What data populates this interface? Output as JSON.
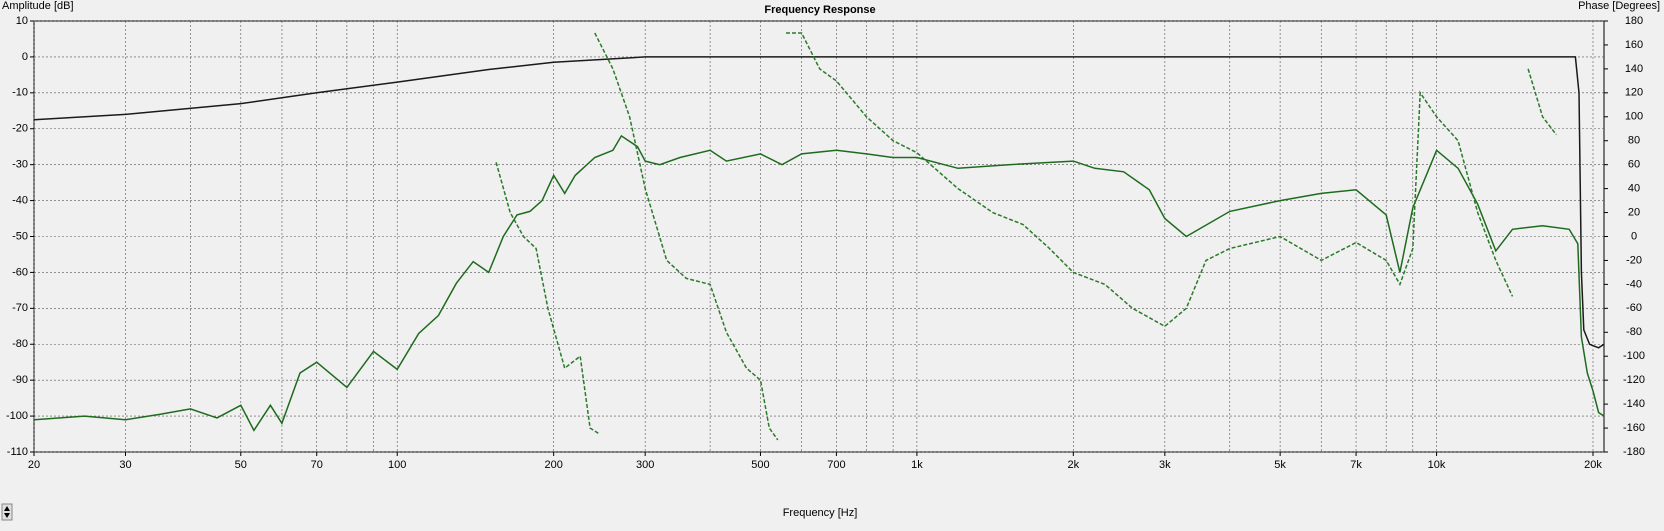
{
  "chart_data": {
    "type": "line",
    "title": "Frequency Response",
    "ylabel": "Amplitude [dB]",
    "y2label": "Phase [Degrees]",
    "xlabel": "Frequency [Hz]",
    "xscale": "log",
    "grid": true,
    "xlim": [
      20,
      21000
    ],
    "xticks": [
      20,
      30,
      50,
      70,
      100,
      200,
      300,
      500,
      700,
      {
        "value": 1000,
        "label": "1k"
      },
      {
        "value": 2000,
        "label": "2k"
      },
      {
        "value": 3000,
        "label": "3k"
      },
      {
        "value": 5000,
        "label": "5k"
      },
      {
        "value": 7000,
        "label": "7k"
      },
      {
        "value": 10000,
        "label": "10k"
      },
      {
        "value": 20000,
        "label": "20k"
      }
    ],
    "x_minor_grid": [
      40,
      60,
      80,
      90,
      400,
      600,
      800,
      900,
      4000,
      6000,
      8000,
      9000
    ],
    "ylim": [
      -110,
      10
    ],
    "yticks": [
      -110,
      -100,
      -90,
      -80,
      -70,
      -60,
      -50,
      -40,
      -30,
      -20,
      -10,
      0,
      10
    ],
    "y2lim": [
      -180,
      180
    ],
    "y2ticks": [
      -180,
      -160,
      -140,
      -120,
      -100,
      -80,
      -60,
      -40,
      -20,
      0,
      20,
      40,
      60,
      80,
      100,
      120,
      140,
      160,
      180
    ],
    "series": [
      {
        "color": "#1a1a1a",
        "dash": false,
        "x": [
          20,
          30,
          50,
          70,
          100,
          150,
          200,
          300,
          1000,
          10000,
          18500,
          18800,
          19000,
          19200,
          19700,
          20500,
          21000
        ],
        "values": [
          -17.5,
          -16,
          -13,
          -10,
          -7,
          -3.5,
          -1.5,
          0,
          0,
          0,
          0,
          -10,
          -60,
          -76,
          -80,
          -81,
          -80
        ]
      },
      {
        "color": "#1e6b1e",
        "dash": false,
        "x": [
          20,
          25,
          30,
          35,
          40,
          45,
          50,
          53,
          57,
          60,
          65,
          70,
          80,
          90,
          100,
          110,
          120,
          130,
          140,
          150,
          160,
          170,
          180,
          190,
          200,
          210,
          220,
          240,
          260,
          270,
          290,
          300,
          320,
          350,
          400,
          430,
          500,
          550,
          600,
          700,
          800,
          900,
          1000,
          1200,
          1500,
          2000,
          2200,
          2500,
          2800,
          3000,
          3300,
          4000,
          5000,
          6000,
          7000,
          8000,
          8500,
          9000,
          10000,
          11000,
          12000,
          13000,
          14000,
          16000,
          18000,
          18700,
          19000,
          19500,
          20000,
          20500,
          21000
        ],
        "values": [
          -101,
          -100,
          -101,
          -99.5,
          -98,
          -100.5,
          -97,
          -104,
          -97,
          -102,
          -88,
          -85,
          -92,
          -82,
          -87,
          -77,
          -72,
          -63,
          -57,
          -60,
          -50,
          -44,
          -43,
          -40,
          -33,
          -38,
          -33,
          -28,
          -26,
          -22,
          -25,
          -29,
          -30,
          -28,
          -26,
          -29,
          -27,
          -30,
          -27,
          -26,
          -27,
          -28,
          -28,
          -31,
          -30,
          -29,
          -31,
          -32,
          -37,
          -45,
          -50,
          -43,
          -40,
          -38,
          -37,
          -44,
          -60,
          -42,
          -26,
          -31,
          -41,
          -54,
          -48,
          -47,
          -48,
          -52,
          -78,
          -88,
          -93,
          -99,
          -100
        ]
      },
      {
        "color": "#2a7a2a",
        "dash": true,
        "axis": "y2",
        "x": [
          155,
          165,
          175,
          185,
          195,
          210,
          225,
          235,
          245,
          null,
          240,
          260,
          280,
          300,
          330,
          360,
          400,
          430,
          470,
          500,
          520,
          540,
          null,
          560,
          600,
          650,
          700,
          800,
          900,
          1000,
          1200,
          1400,
          1600,
          1800,
          2000,
          2300,
          2600,
          3000,
          3300,
          3600,
          4000,
          5000,
          6000,
          7000,
          8000,
          8500,
          9000,
          9300,
          10000,
          11000,
          12000,
          13000,
          14000,
          null,
          15000,
          16000,
          17000
        ],
        "values": [
          62,
          20,
          0,
          -10,
          -60,
          -110,
          -100,
          -160,
          -165,
          null,
          170,
          140,
          100,
          40,
          -20,
          -35,
          -40,
          -80,
          -110,
          -120,
          -160,
          -170,
          null,
          170,
          170,
          140,
          130,
          100,
          80,
          70,
          40,
          20,
          10,
          -10,
          -30,
          -40,
          -60,
          -75,
          -60,
          -20,
          -10,
          0,
          -20,
          -5,
          -20,
          -40,
          -10,
          120,
          100,
          80,
          20,
          -20,
          -50,
          null,
          140,
          100,
          85
        ]
      }
    ]
  }
}
